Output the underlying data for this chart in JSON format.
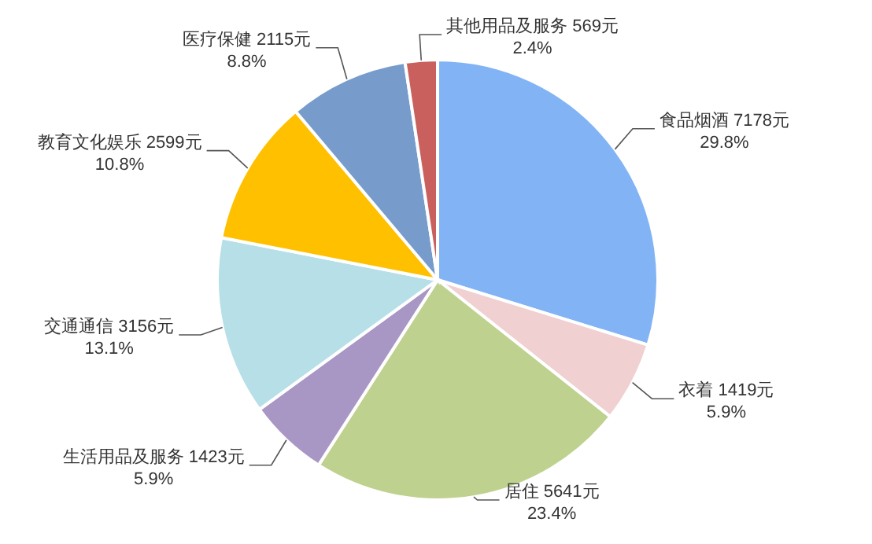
{
  "chart_data": {
    "type": "pie",
    "categories": [
      "食品烟酒",
      "衣着",
      "居住",
      "生活用品及服务",
      "交通通信",
      "教育文化娱乐",
      "医疗保健",
      "其他用品及服务"
    ],
    "values": [
      7178,
      1419,
      5641,
      1423,
      3156,
      2599,
      2115,
      569
    ],
    "value_labels": [
      "7178元\n29.8%",
      "1419元\n5.9%",
      "5641元\n23.4%",
      "1423元\n5.9%",
      "3156元\n13.1%",
      "2599元\n10.8%",
      "2115元\n8.8%",
      "569元\n2.4%"
    ],
    "colors": [
      "#82b4f5",
      "#f0d0d0",
      "#bfd18f",
      "#a897c5",
      "#b7dfe8",
      "#ffc000",
      "#779ccb",
      "#c9605e"
    ]
  }
}
